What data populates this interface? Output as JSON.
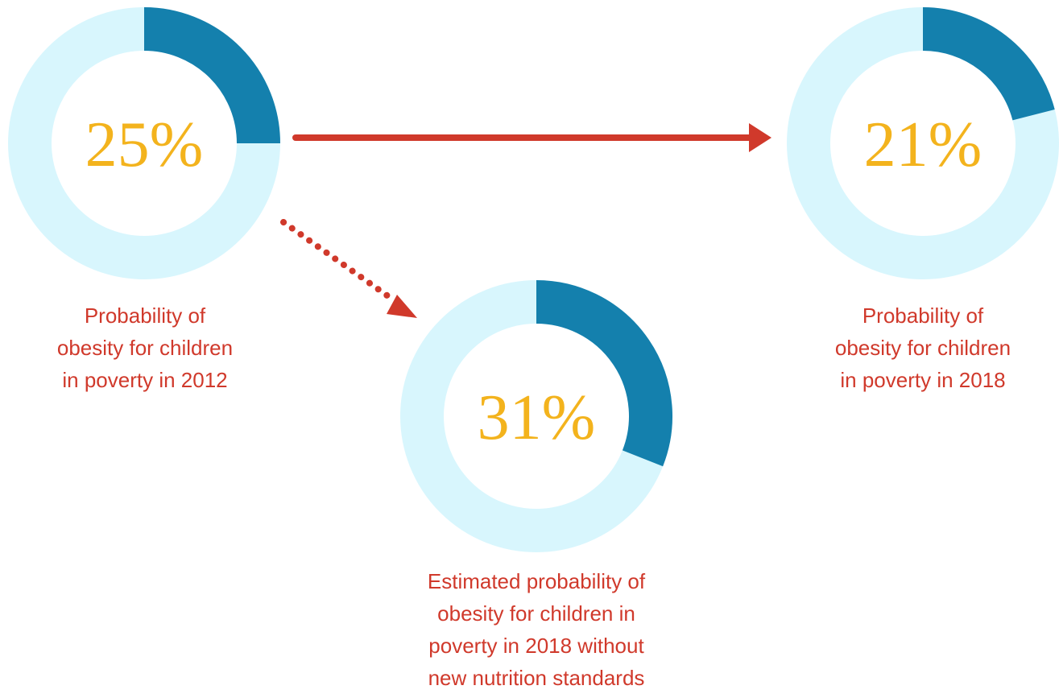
{
  "colors": {
    "filled": "#1480ad",
    "remaining": "#d8f6fd",
    "percent_text": "#f3b31d",
    "caption_text": "#d0392b",
    "arrow": "#d0392b"
  },
  "chart_data": {
    "type": "pie",
    "donuts": [
      {
        "value": 25,
        "label": "25%",
        "caption": "Probability of\nobesity for children\nin poverty in 2012"
      },
      {
        "value": 21,
        "label": "21%",
        "caption": "Probability of\nobesity for children\nin poverty in 2018"
      },
      {
        "value": 31,
        "label": "31%",
        "caption": "Estimated probability of\nobesity for children in\npoverty in 2018 without\nnew nutrition standards"
      }
    ]
  }
}
